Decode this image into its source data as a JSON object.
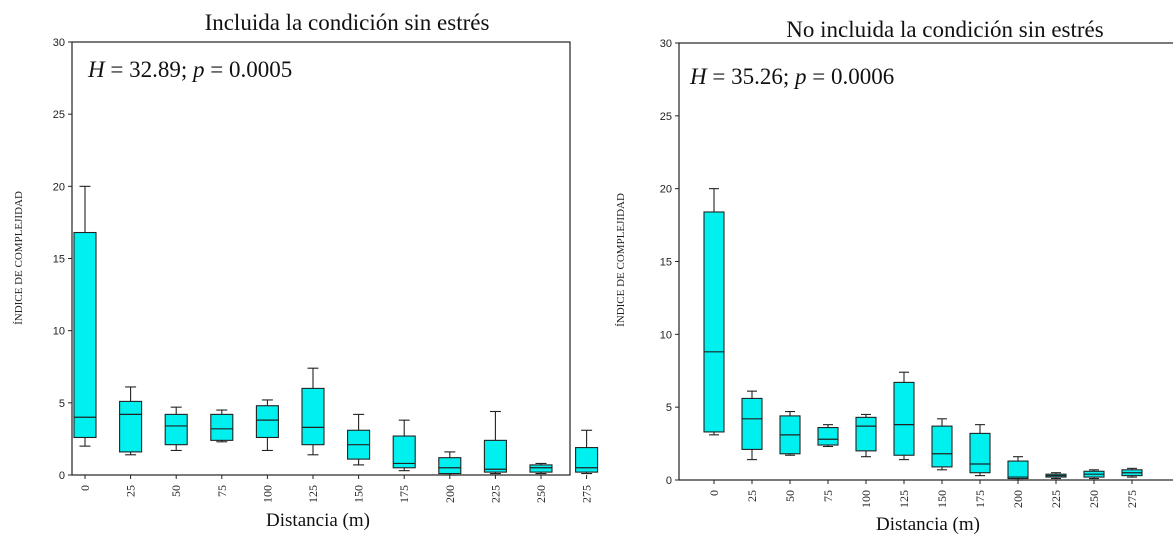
{
  "chart_data": [
    {
      "type": "boxplot",
      "title": "Incluida la condición sin estrés",
      "stat_text": {
        "h_symbol": "H",
        "h_value": " = 32.89; ",
        "p_symbol": "p",
        "p_value": " = 0.0005"
      },
      "xlabel": "Distancia  (m)",
      "ylabel": "ÍNDICE DE COMPLEJIDAD",
      "ylim": [
        0,
        30
      ],
      "yticks": [
        "0",
        "5",
        "10",
        "15",
        "20",
        "25",
        "30"
      ],
      "box_color": "#00f0f0",
      "categories": [
        "0",
        "25",
        "50",
        "75",
        "100",
        "125",
        "150",
        "175",
        "200",
        "225",
        "250",
        "275"
      ],
      "boxes": [
        {
          "min": 2.0,
          "q1": 2.6,
          "median": 4.0,
          "q3": 16.8,
          "max": 20.0
        },
        {
          "min": 1.4,
          "q1": 1.6,
          "median": 4.2,
          "q3": 5.1,
          "max": 6.1
        },
        {
          "min": 1.7,
          "q1": 2.1,
          "median": 3.4,
          "q3": 4.2,
          "max": 4.7
        },
        {
          "min": 2.3,
          "q1": 2.4,
          "median": 3.2,
          "q3": 4.2,
          "max": 4.5
        },
        {
          "min": 1.7,
          "q1": 2.6,
          "median": 3.8,
          "q3": 4.8,
          "max": 5.2
        },
        {
          "min": 1.4,
          "q1": 2.1,
          "median": 3.3,
          "q3": 6.0,
          "max": 7.4
        },
        {
          "min": 0.7,
          "q1": 1.1,
          "median": 2.1,
          "q3": 3.1,
          "max": 4.2
        },
        {
          "min": 0.3,
          "q1": 0.5,
          "median": 0.8,
          "q3": 2.7,
          "max": 3.8
        },
        {
          "min": 0.0,
          "q1": 0.1,
          "median": 0.5,
          "q3": 1.2,
          "max": 1.6
        },
        {
          "min": 0.1,
          "q1": 0.2,
          "median": 0.4,
          "q3": 2.4,
          "max": 4.4
        },
        {
          "min": 0.1,
          "q1": 0.2,
          "median": 0.5,
          "q3": 0.7,
          "max": 0.8
        },
        {
          "min": 0.1,
          "q1": 0.2,
          "median": 0.5,
          "q3": 1.9,
          "max": 3.1
        }
      ]
    },
    {
      "type": "boxplot",
      "title": "No incluida la condición sin estrés",
      "stat_text": {
        "h_symbol": "H",
        "h_value": " = 35.26; ",
        "p_symbol": "p",
        "p_value": " = 0.0006"
      },
      "xlabel": "Distancia  (m)",
      "ylabel": "ÍNDICE DE COMPLEJIDAD",
      "ylim": [
        0,
        30
      ],
      "yticks": [
        "0",
        "5",
        "10",
        "15",
        "20",
        "25",
        "30"
      ],
      "box_color": "#00f0f0",
      "categories": [
        "0",
        "25",
        "50",
        "75",
        "100",
        "125",
        "150",
        "175",
        "200",
        "225",
        "250",
        "275"
      ],
      "boxes": [
        {
          "min": 3.1,
          "q1": 3.3,
          "median": 8.8,
          "q3": 18.4,
          "max": 20.0
        },
        {
          "min": 1.4,
          "q1": 2.1,
          "median": 4.2,
          "q3": 5.6,
          "max": 6.1
        },
        {
          "min": 1.7,
          "q1": 1.8,
          "median": 3.1,
          "q3": 4.4,
          "max": 4.7
        },
        {
          "min": 2.3,
          "q1": 2.4,
          "median": 2.8,
          "q3": 3.6,
          "max": 3.8
        },
        {
          "min": 1.6,
          "q1": 2.0,
          "median": 3.7,
          "q3": 4.3,
          "max": 4.5
        },
        {
          "min": 1.4,
          "q1": 1.7,
          "median": 3.8,
          "q3": 6.7,
          "max": 7.4
        },
        {
          "min": 0.7,
          "q1": 0.9,
          "median": 1.8,
          "q3": 3.7,
          "max": 4.2
        },
        {
          "min": 0.3,
          "q1": 0.5,
          "median": 1.1,
          "q3": 3.2,
          "max": 3.8
        },
        {
          "min": 0.0,
          "q1": 0.1,
          "median": 0.2,
          "q3": 1.3,
          "max": 1.6
        },
        {
          "min": 0.1,
          "q1": 0.2,
          "median": 0.3,
          "q3": 0.4,
          "max": 0.5
        },
        {
          "min": 0.1,
          "q1": 0.2,
          "median": 0.4,
          "q3": 0.6,
          "max": 0.7
        },
        {
          "min": 0.2,
          "q1": 0.3,
          "median": 0.5,
          "q3": 0.7,
          "max": 0.8
        }
      ]
    }
  ]
}
